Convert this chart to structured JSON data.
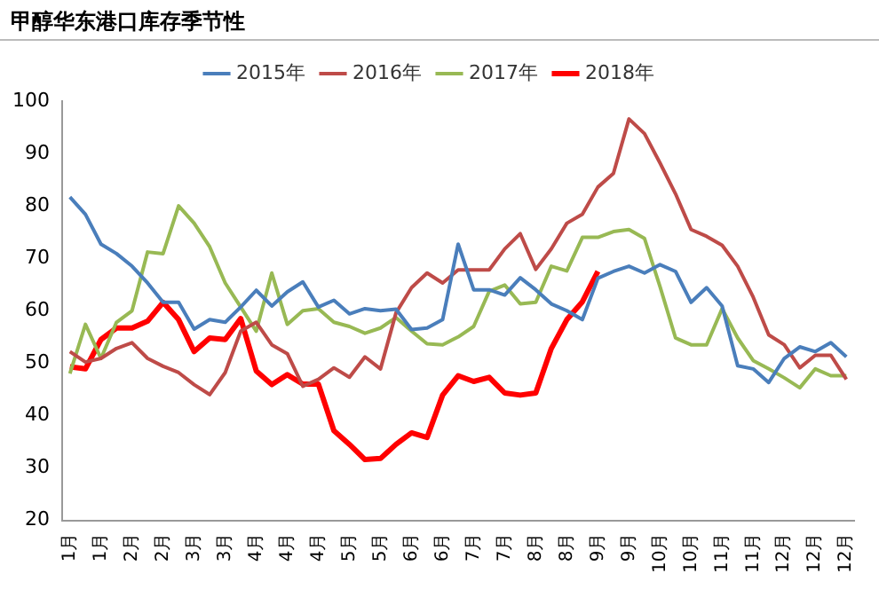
{
  "chart_data": {
    "type": "line",
    "title": "甲醇华东港口库存季节性",
    "categories": [
      "1月",
      null,
      "1月",
      null,
      "2月",
      null,
      "2月",
      null,
      "3月",
      null,
      "3月",
      null,
      "4月",
      null,
      "4月",
      null,
      "4月",
      null,
      "5月",
      null,
      "5月",
      null,
      "6月",
      null,
      "6月",
      null,
      "7月",
      null,
      "7月",
      null,
      "8月",
      null,
      "8月",
      null,
      "9月",
      null,
      "9月",
      null,
      "10月",
      null,
      "10月",
      null,
      "11月",
      null,
      "11月",
      null,
      "12月",
      null,
      "12月",
      null,
      "12月"
    ],
    "ylim": [
      20,
      100
    ],
    "yticks": [
      20,
      30,
      40,
      50,
      60,
      70,
      80,
      90,
      100
    ],
    "grid": false,
    "legend": "top",
    "marker": "none",
    "series": [
      {
        "name": "2015年",
        "color": "#4a7ebb",
        "values": [
          81.7,
          78.4,
          72.7,
          70.9,
          68.5,
          65.3,
          61.6,
          61.6,
          56.5,
          58.3,
          57.8,
          60.7,
          63.9,
          60.9,
          63.6,
          65.5,
          60.7,
          62,
          59.4,
          60.4,
          60,
          60.3,
          56.4,
          56.7,
          58.3,
          72.7,
          64,
          64,
          63,
          66.3,
          64,
          61.3,
          60,
          58.3,
          66.2,
          67.5,
          68.5,
          67.2,
          68.8,
          67.5,
          61.6,
          64.4,
          60.9,
          49.5,
          48.9,
          46.3,
          50.9,
          53.1,
          52.2,
          53.9,
          51.2
        ]
      },
      {
        "name": "2016年",
        "color": "#be4b48",
        "values": [
          52.2,
          50.2,
          50.9,
          52.8,
          53.9,
          50.9,
          49.4,
          48.2,
          45.9,
          44,
          48.2,
          56.1,
          57.8,
          53.5,
          51.8,
          45.6,
          46.9,
          49.1,
          47.3,
          51.2,
          48.9,
          59.6,
          64.4,
          67.2,
          65.3,
          67.8,
          67.8,
          67.8,
          71.8,
          74.7,
          67.9,
          71.8,
          76.7,
          78.4,
          83.6,
          86.2,
          96.6,
          93.8,
          88.2,
          82.3,
          75.5,
          74.2,
          72.5,
          68.5,
          62.6,
          55.4,
          53.5,
          49.1,
          51.5,
          51.5,
          46.9
        ]
      },
      {
        "name": "2017年",
        "color": "#98b954",
        "values": [
          48,
          57.4,
          50.9,
          57.8,
          60,
          71.2,
          70.9,
          80,
          76.7,
          72.2,
          65.3,
          60.7,
          56.1,
          67.2,
          57.4,
          60,
          60.4,
          57.8,
          57,
          55.7,
          56.7,
          58.7,
          56.1,
          53.7,
          53.5,
          55,
          57,
          63.7,
          64.9,
          61.3,
          61.6,
          68.5,
          67.6,
          74,
          74,
          75.1,
          75.5,
          73.8,
          64.6,
          54.8,
          53.5,
          53.5,
          60.4,
          54.8,
          50.5,
          48.9,
          47.2,
          45.3,
          48.9,
          47.6,
          47.6
        ]
      },
      {
        "name": "2018年",
        "color": "#ff0000",
        "values": [
          49.3,
          48.9,
          54.5,
          56.7,
          56.7,
          58,
          61.6,
          58.3,
          52.2,
          54.8,
          54.5,
          58.5,
          48.5,
          45.9,
          47.8,
          46,
          46,
          37.1,
          34.5,
          31.6,
          31.8,
          34.5,
          36.7,
          35.8,
          43.9,
          47.6,
          46.5,
          47.3,
          44.3,
          43.9,
          44.3,
          52.8,
          58.3,
          61.7,
          67.5,
          null,
          null,
          null,
          null,
          null,
          null,
          null,
          null,
          null,
          null,
          null,
          null,
          null,
          null,
          null,
          null
        ]
      }
    ]
  }
}
